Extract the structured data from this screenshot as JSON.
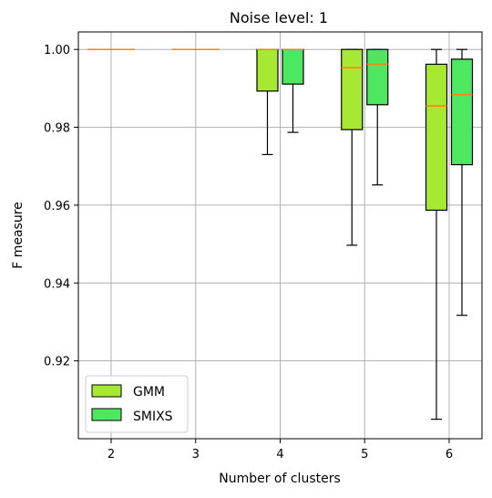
{
  "chart_data": {
    "type": "boxplot",
    "title": "Noise level: 1",
    "xlabel": "Number of clusters",
    "ylabel": "F measure",
    "categories": [
      "2",
      "3",
      "4",
      "5",
      "6"
    ],
    "ylim": [
      0.9,
      1.0045
    ],
    "yticks": [
      "0.92",
      "0.94",
      "0.96",
      "0.98",
      "1.00"
    ],
    "grid": true,
    "legend_position": "lower-left",
    "median_color": "#ff7f0e",
    "series": [
      {
        "name": "GMM",
        "color": "#a6e832",
        "boxes": [
          {
            "whisker_low": 1.0,
            "q1": 1.0,
            "median": 1.0,
            "q3": 1.0,
            "whisker_high": 1.0
          },
          {
            "whisker_low": 1.0,
            "q1": 1.0,
            "median": 1.0,
            "q3": 1.0,
            "whisker_high": 1.0
          },
          {
            "whisker_low": 0.973,
            "q1": 0.9893,
            "median": 1.0,
            "q3": 1.0,
            "whisker_high": 1.0
          },
          {
            "whisker_low": 0.9497,
            "q1": 0.9794,
            "median": 0.9953,
            "q3": 1.0,
            "whisker_high": 1.0
          },
          {
            "whisker_low": 0.905,
            "q1": 0.9587,
            "median": 0.9855,
            "q3": 0.9962,
            "whisker_high": 1.0
          }
        ]
      },
      {
        "name": "SMIXS",
        "color": "#4ee860",
        "boxes": [
          {
            "whisker_low": 1.0,
            "q1": 1.0,
            "median": 1.0,
            "q3": 1.0,
            "whisker_high": 1.0
          },
          {
            "whisker_low": 1.0,
            "q1": 1.0,
            "median": 1.0,
            "q3": 1.0,
            "whisker_high": 1.0
          },
          {
            "whisker_low": 0.9787,
            "q1": 0.9911,
            "median": 1.0,
            "q3": 1.0,
            "whisker_high": 1.0
          },
          {
            "whisker_low": 0.9652,
            "q1": 0.9858,
            "median": 0.9962,
            "q3": 1.0,
            "whisker_high": 1.0
          },
          {
            "whisker_low": 0.9317,
            "q1": 0.9704,
            "median": 0.9884,
            "q3": 0.9975,
            "whisker_high": 1.0
          }
        ]
      }
    ]
  }
}
